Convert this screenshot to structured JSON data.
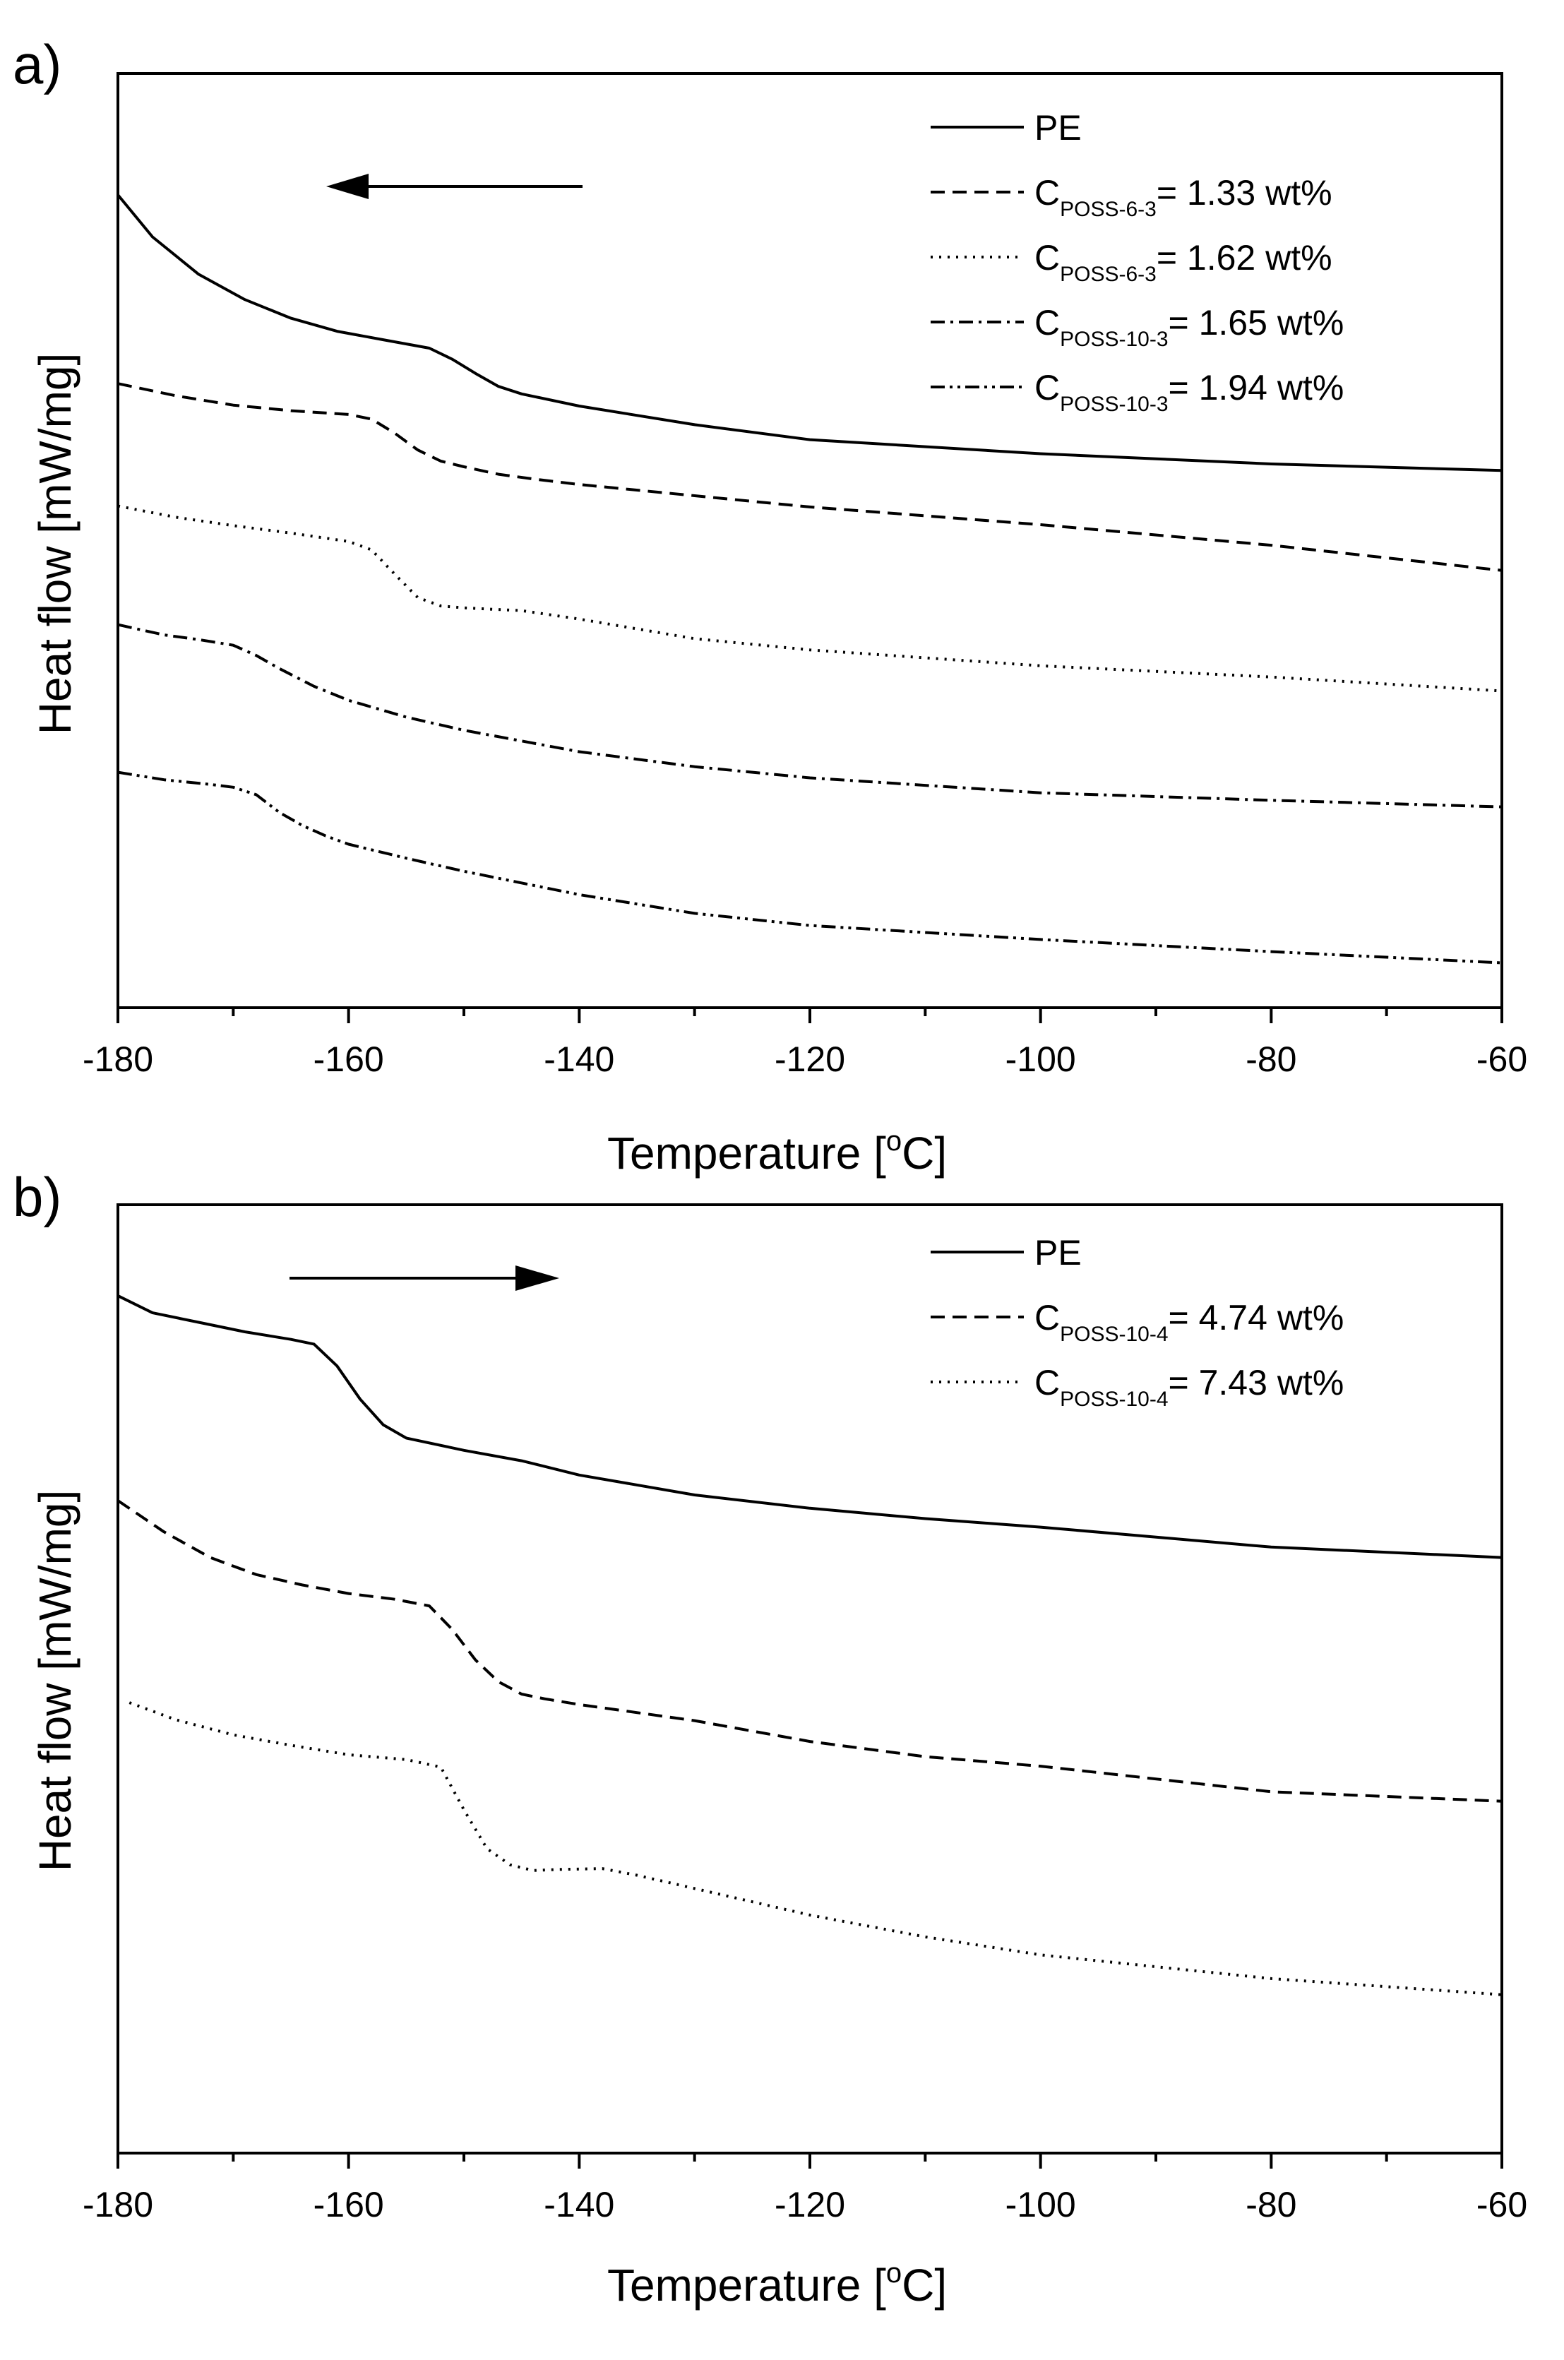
{
  "figure": {
    "panels": [
      {
        "label": "a)",
        "arrow_direction": "left"
      },
      {
        "label": "b)",
        "arrow_direction": "right"
      }
    ]
  },
  "chart_data": [
    {
      "type": "line",
      "panel_label": "a)",
      "title": "",
      "xlabel_main": "Temperature [",
      "xlabel_sup": "o",
      "xlabel_end": "C]",
      "ylabel": "Heat flow [mW/mg]",
      "xlim": [
        -180,
        -60
      ],
      "ylim": [
        0,
        100
      ],
      "y_ticks_labeled": false,
      "x_ticks": [
        -180,
        -160,
        -140,
        -120,
        -100,
        -80,
        -60
      ],
      "x_tick_labels": [
        "-180",
        "-160",
        "-140",
        "-120",
        "-100",
        "-80",
        "-60"
      ],
      "legend_position": "top-right",
      "cooling_arrow": {
        "direction": "left"
      },
      "series": [
        {
          "name": "PE",
          "legend": {
            "main": "PE",
            "sub": "",
            "value": ""
          },
          "style": "solid",
          "x": [
            -180,
            -177,
            -173,
            -169,
            -165,
            -161,
            -157,
            -153,
            -151,
            -149,
            -147,
            -145,
            -140,
            -130,
            -120,
            -100,
            -80,
            -60
          ],
          "y": [
            87,
            82.5,
            78.5,
            75.8,
            73.8,
            72.4,
            71.5,
            70.6,
            69.4,
            67.9,
            66.5,
            65.7,
            64.4,
            62.4,
            60.8,
            59.3,
            58.2,
            57.5
          ]
        },
        {
          "name": "C POSS-6-3 = 1.33 wt%",
          "legend": {
            "main": "C",
            "sub": "POSS-6-3",
            "value": "= 1.33 wt%"
          },
          "style": "dashed",
          "x": [
            -180,
            -175,
            -170,
            -165,
            -160,
            -158,
            -156,
            -154,
            -152,
            -150,
            -147,
            -144,
            -140,
            -130,
            -120,
            -100,
            -80,
            -60
          ],
          "y": [
            66.8,
            65.5,
            64.5,
            63.9,
            63.5,
            63.0,
            61.5,
            59.7,
            58.5,
            57.9,
            57.1,
            56.6,
            56.0,
            54.8,
            53.6,
            51.7,
            49.5,
            46.8
          ]
        },
        {
          "name": "C POSS-6-3 = 1.62 wt%",
          "legend": {
            "main": "C",
            "sub": "POSS-6-3",
            "value": "= 1.62 wt%"
          },
          "style": "dotted",
          "x": [
            -180,
            -175,
            -170,
            -165,
            -160,
            -158,
            -156,
            -154,
            -152,
            -150,
            -145,
            -140,
            -130,
            -120,
            -100,
            -80,
            -60
          ],
          "y": [
            53.7,
            52.5,
            51.6,
            50.8,
            49.9,
            49.0,
            46.4,
            43.9,
            43.0,
            42.8,
            42.5,
            41.6,
            39.5,
            38.3,
            36.6,
            35.4,
            33.9
          ]
        },
        {
          "name": "C POSS-10-3 = 1.65 wt%",
          "legend": {
            "main": "C",
            "sub": "POSS-10-3",
            "value": "= 1.65 wt%"
          },
          "style": "dashdot",
          "x": [
            -180,
            -176,
            -173,
            -170,
            -168,
            -166,
            -163,
            -160,
            -155,
            -150,
            -140,
            -130,
            -120,
            -100,
            -80,
            -60
          ],
          "y": [
            41.0,
            39.9,
            39.4,
            38.8,
            37.7,
            36.3,
            34.4,
            32.9,
            31.1,
            29.7,
            27.4,
            25.8,
            24.6,
            23.0,
            22.2,
            21.5
          ]
        },
        {
          "name": "C POSS-10-3 = 1.94 wt%",
          "legend": {
            "main": "C",
            "sub": "POSS-10-3",
            "value": "= 1.94 wt%"
          },
          "style": "dashdotdot",
          "x": [
            -180,
            -176,
            -172,
            -170,
            -168,
            -166,
            -164,
            -162,
            -160,
            -155,
            -150,
            -140,
            -130,
            -120,
            -100,
            -80,
            -60
          ],
          "y": [
            25.2,
            24.4,
            23.9,
            23.6,
            22.8,
            20.9,
            19.5,
            18.4,
            17.5,
            16.0,
            14.6,
            12.1,
            10.1,
            8.8,
            7.3,
            6.0,
            4.8
          ]
        }
      ]
    },
    {
      "type": "line",
      "panel_label": "b)",
      "title": "",
      "xlabel_main": "Temperature [",
      "xlabel_sup": "o",
      "xlabel_end": "C]",
      "ylabel": "Heat flow [mW/mg]",
      "xlim": [
        -180,
        -60
      ],
      "ylim": [
        0,
        100
      ],
      "y_ticks_labeled": false,
      "x_ticks": [
        -180,
        -160,
        -140,
        -120,
        -100,
        -80,
        -60
      ],
      "x_tick_labels": [
        "-180",
        "-160",
        "-140",
        "-120",
        "-100",
        "-80",
        "-60"
      ],
      "legend_position": "top-right",
      "heating_arrow": {
        "direction": "right"
      },
      "series": [
        {
          "name": "PE",
          "legend": {
            "main": "PE",
            "sub": "",
            "value": ""
          },
          "style": "solid",
          "x": [
            -180,
            -177,
            -173,
            -169,
            -165,
            -163,
            -161,
            -159,
            -157,
            -155,
            -150,
            -145,
            -140,
            -130,
            -120,
            -110,
            -100,
            -80,
            -60
          ],
          "y": [
            90.4,
            88.6,
            87.6,
            86.6,
            85.8,
            85.3,
            83.0,
            79.5,
            76.8,
            75.4,
            74.1,
            73.0,
            71.5,
            69.4,
            68.0,
            66.9,
            66.0,
            63.9,
            62.8
          ]
        },
        {
          "name": "C POSS-10-4 = 4.74 wt%",
          "legend": {
            "main": "C",
            "sub": "POSS-10-4",
            "value": "= 4.74 wt%"
          },
          "style": "dashed",
          "x": [
            -180,
            -176,
            -172,
            -168,
            -164,
            -160,
            -156,
            -153,
            -151,
            -149,
            -147,
            -145,
            -143,
            -140,
            -130,
            -120,
            -110,
            -100,
            -80,
            -60
          ],
          "y": [
            68.8,
            65.5,
            62.8,
            61.0,
            59.9,
            59.0,
            58.4,
            57.7,
            55.2,
            52.0,
            49.7,
            48.4,
            47.9,
            47.3,
            45.6,
            43.4,
            41.8,
            40.8,
            38.1,
            37.1
          ]
        },
        {
          "name": "C POSS-10-4 = 7.43 wt%",
          "legend": {
            "main": "C",
            "sub": "POSS-10-4",
            "value": "= 7.43 wt%"
          },
          "style": "dotted",
          "x": [
            -179,
            -175,
            -170,
            -165,
            -160,
            -155,
            -152,
            -150,
            -148,
            -146,
            -144,
            -142,
            -138,
            -135,
            -130,
            -120,
            -110,
            -100,
            -80,
            -60
          ],
          "y": [
            47.5,
            45.7,
            44.1,
            43.0,
            42.0,
            41.5,
            40.7,
            36.2,
            32.1,
            30.4,
            29.8,
            29.9,
            30.0,
            29.3,
            27.9,
            25.1,
            22.8,
            20.9,
            18.4,
            16.7
          ]
        }
      ]
    }
  ]
}
